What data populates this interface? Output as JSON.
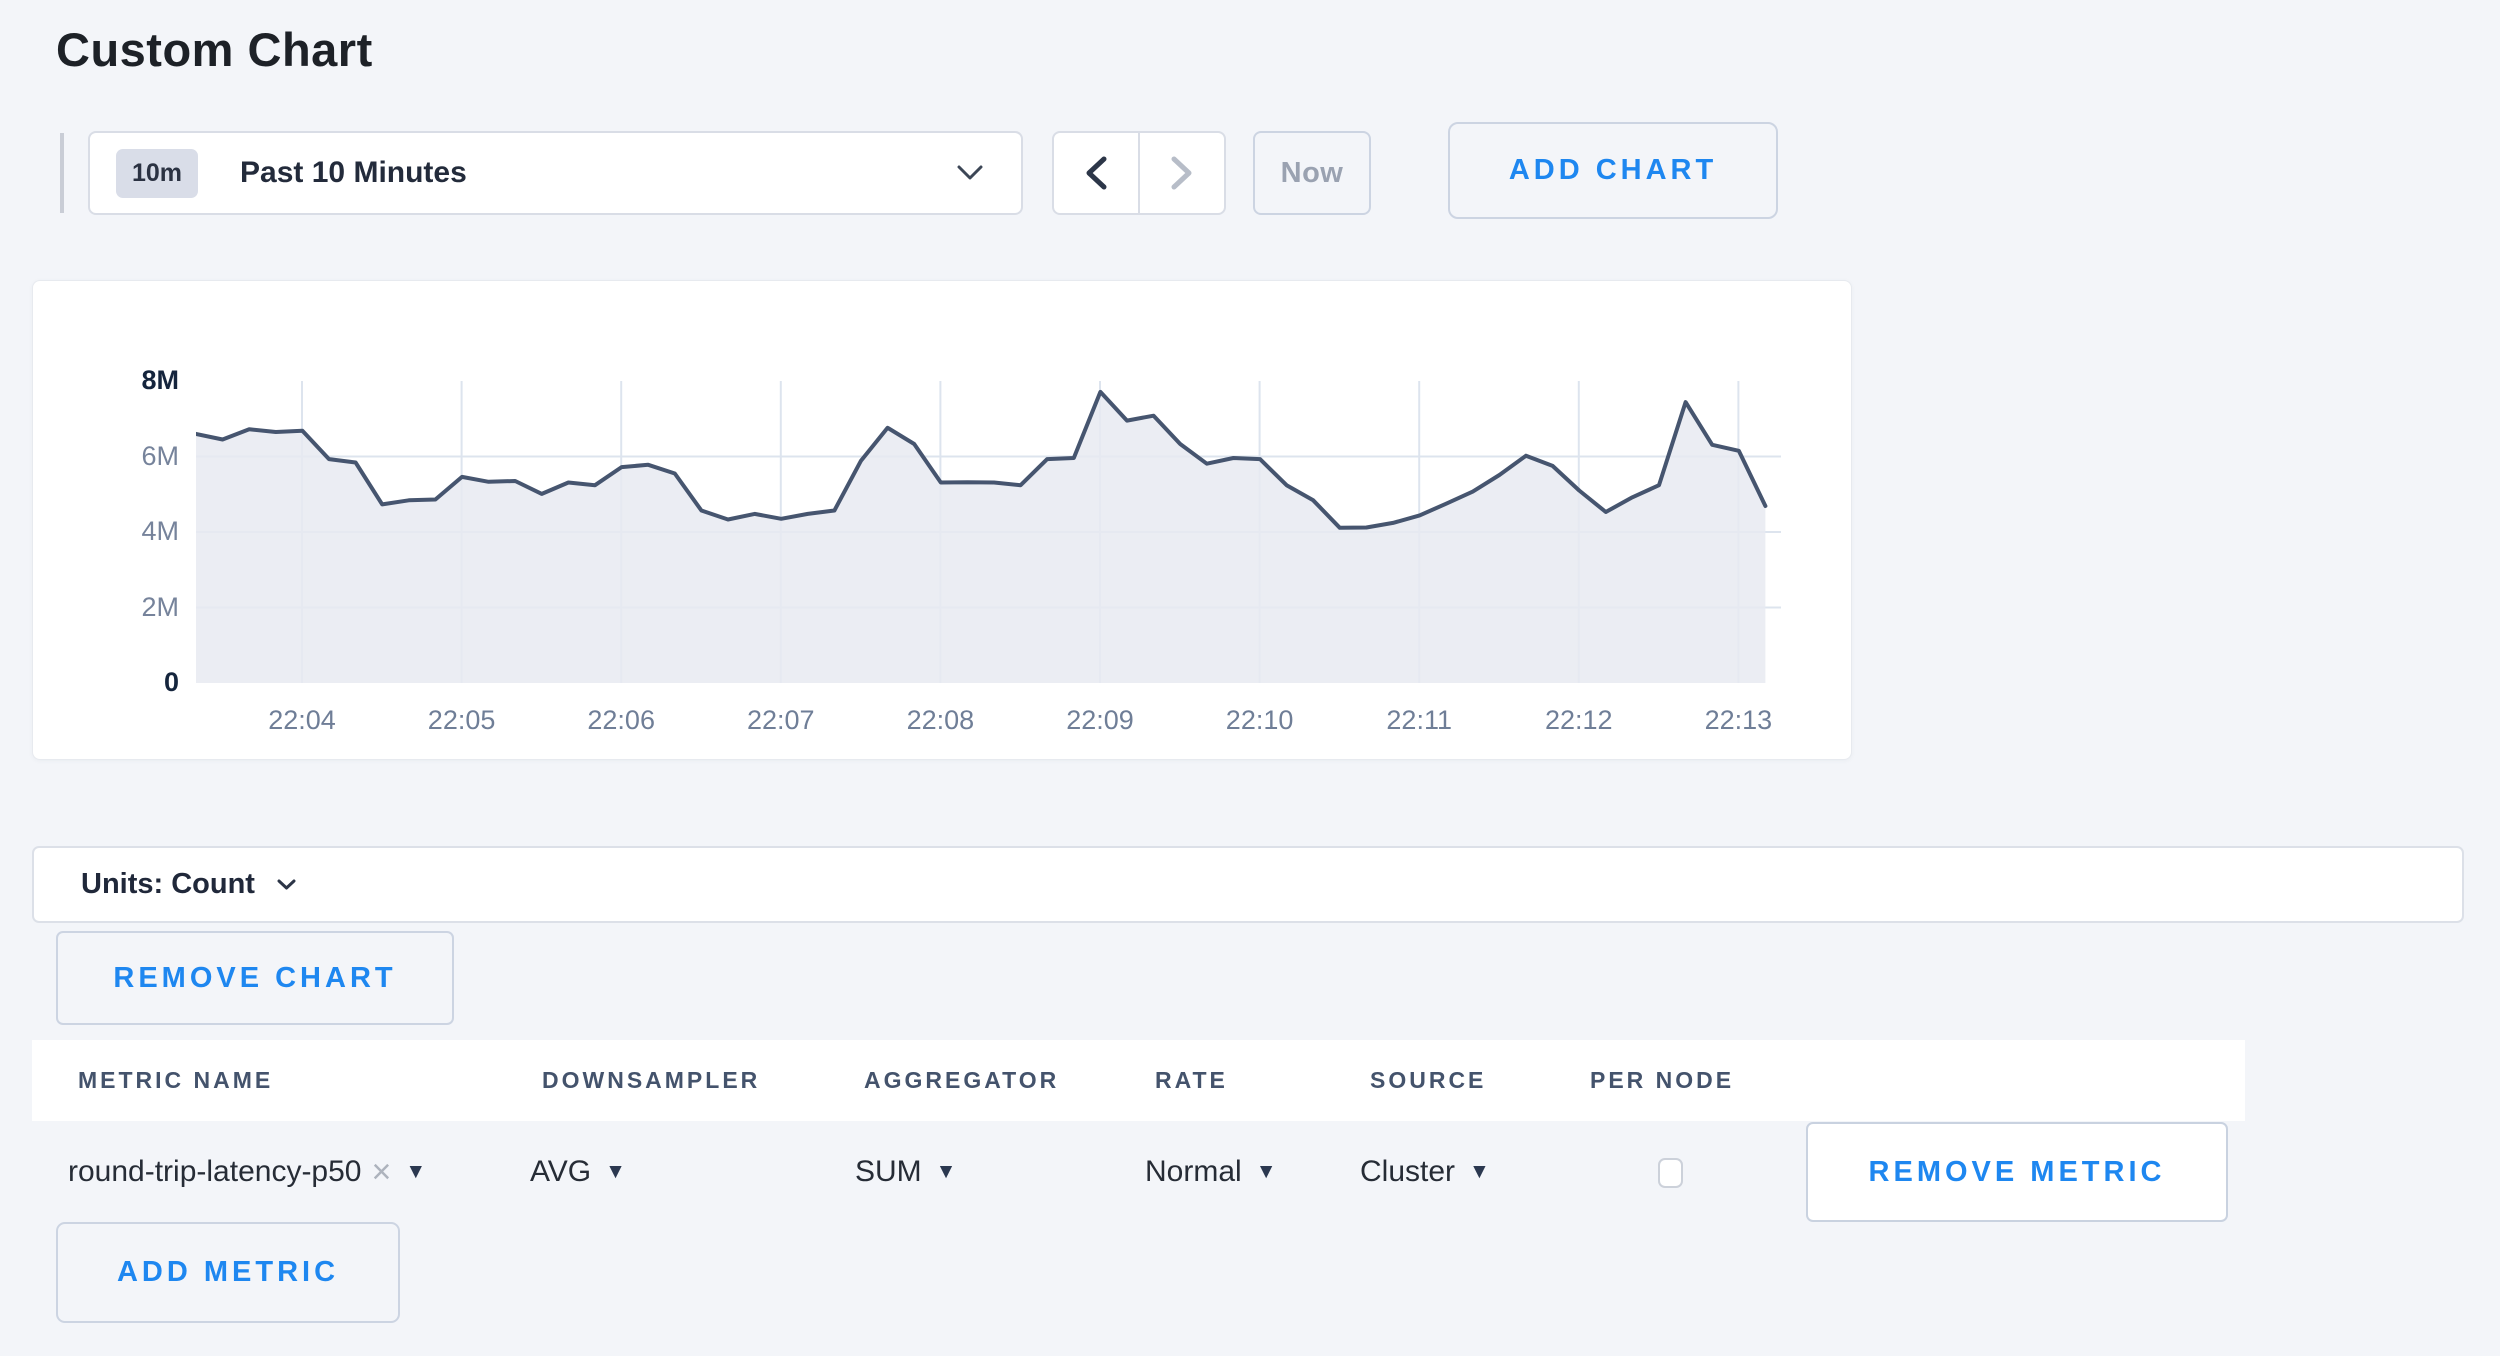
{
  "page": {
    "title": "Custom Chart"
  },
  "toolbar": {
    "time_badge": "10m",
    "time_label": "Past 10 Minutes",
    "prev_label": "previous-time-window",
    "next_label": "next-time-window",
    "now_label": "Now",
    "add_chart_label": "ADD CHART"
  },
  "chart_data": {
    "type": "area",
    "title": "",
    "ylabel": "",
    "xlabel": "",
    "unit": "Count",
    "ylim": [
      0,
      8000000
    ],
    "y_ticks": [
      {
        "label": "8M",
        "value": 8,
        "emphasis": true
      },
      {
        "label": "6M",
        "value": 6,
        "emphasis": false
      },
      {
        "label": "4M",
        "value": 4,
        "emphasis": false
      },
      {
        "label": "2M",
        "value": 2,
        "emphasis": false
      },
      {
        "label": "0",
        "value": 0,
        "emphasis": true
      }
    ],
    "x_tick_labels": [
      "22:04",
      "22:05",
      "22:06",
      "22:07",
      "22:08",
      "22:09",
      "22:10",
      "22:11",
      "22:12",
      "22:13"
    ],
    "start_time": "22:03:20",
    "sample_interval_seconds": 10,
    "grid": true,
    "legend": "none",
    "series": [
      {
        "name": "round-trip-latency-p50",
        "values_millions": [
          6.6,
          6.45,
          6.72,
          6.65,
          6.68,
          5.93,
          5.84,
          4.73,
          4.84,
          4.86,
          5.46,
          5.33,
          5.35,
          5.01,
          5.31,
          5.24,
          5.72,
          5.78,
          5.55,
          4.57,
          4.33,
          4.48,
          4.35,
          4.48,
          4.57,
          5.89,
          6.76,
          6.33,
          5.31,
          5.32,
          5.31,
          5.24,
          5.93,
          5.96,
          7.71,
          6.95,
          7.08,
          6.33,
          5.81,
          5.96,
          5.93,
          5.24,
          4.84,
          4.11,
          4.12,
          4.24,
          4.44,
          4.75,
          5.07,
          5.51,
          6.02,
          5.75,
          5.1,
          4.53,
          4.92,
          5.24,
          7.44,
          6.31,
          6.15,
          4.69
        ]
      }
    ],
    "colors": {
      "line": "#46556f",
      "fill": "#e7eaf1",
      "grid": "#dde4ee",
      "tick_label": "#6f7e97",
      "tick_label_emphasis": "#15253d"
    }
  },
  "units_bar": {
    "label": "Units: Count"
  },
  "chart_actions": {
    "remove_chart_label": "REMOVE CHART"
  },
  "metrics_table": {
    "headers": [
      "METRIC NAME",
      "DOWNSAMPLER",
      "AGGREGATOR",
      "RATE",
      "SOURCE",
      "PER NODE"
    ],
    "rows": [
      {
        "metric_name": "round-trip-latency-p50",
        "remove_tag_icon": "×",
        "downsampler": "AVG",
        "aggregator": "SUM",
        "rate": "Normal",
        "source": "Cluster",
        "per_node_checked": false,
        "remove_label": "REMOVE METRIC"
      }
    ],
    "add_metric_label": "ADD METRIC"
  }
}
